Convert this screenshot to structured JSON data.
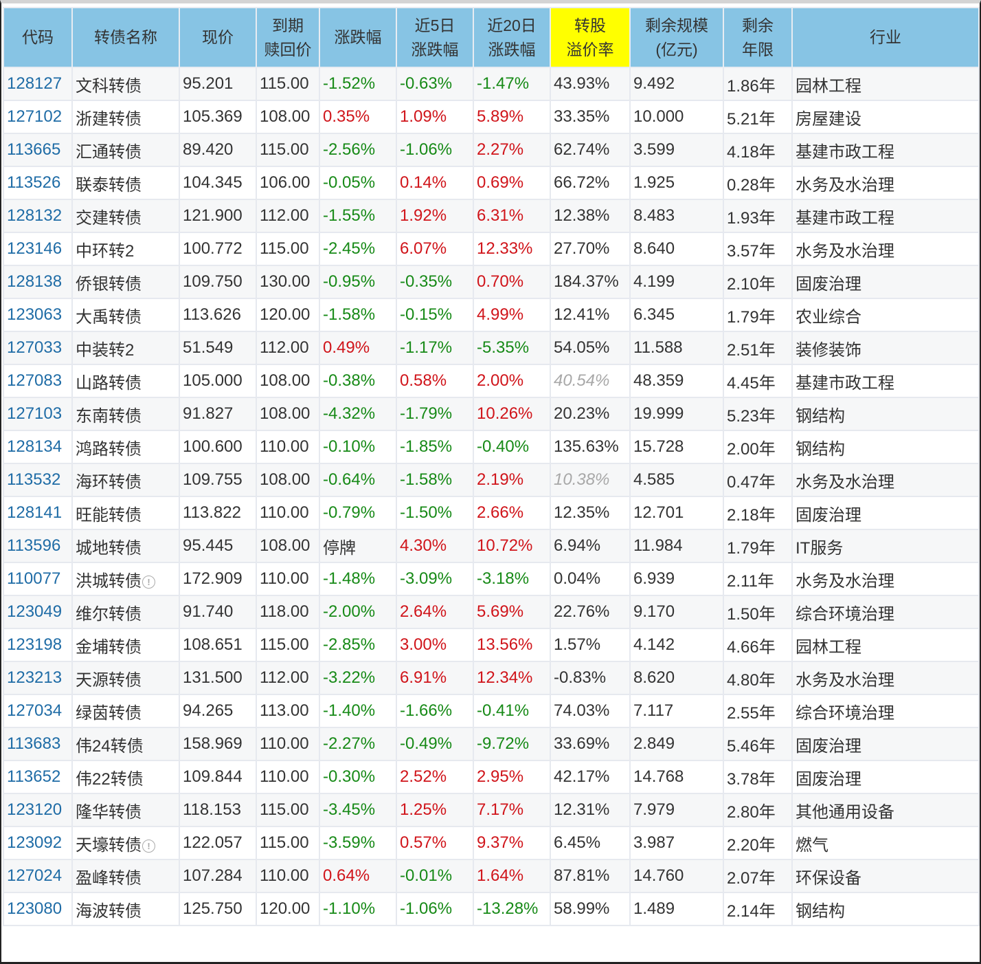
{
  "table": {
    "headers": [
      {
        "key": "code",
        "label": "代码"
      },
      {
        "key": "name",
        "label": "转债名称"
      },
      {
        "key": "price",
        "label": "现价"
      },
      {
        "key": "redeem",
        "label": "到期\n赎回价"
      },
      {
        "key": "chg",
        "label": "涨跌幅"
      },
      {
        "key": "chg5",
        "label": "近5日\n涨跌幅"
      },
      {
        "key": "chg20",
        "label": "近20日\n涨跌幅"
      },
      {
        "key": "premium",
        "label": "转股\n溢价率",
        "highlight": "#ffff00"
      },
      {
        "key": "size",
        "label": "剩余规模\n(亿元)"
      },
      {
        "key": "years",
        "label": "剩余\n年限"
      },
      {
        "key": "industry",
        "label": "行业"
      }
    ],
    "colors": {
      "header_bg": "#87c4e4",
      "highlight_bg": "#ffff00",
      "up": "#d0141a",
      "down": "#178a17",
      "link": "#1f6ca6",
      "muted": "#a8a8a8"
    },
    "rows": [
      {
        "code": "128127",
        "name": "文科转债",
        "price": "95.201",
        "redeem": "115.00",
        "chg": "-1.52%",
        "chg5": "-0.63%",
        "chg20": "-1.47%",
        "premium": "43.93%",
        "size": "9.492",
        "years": "1.86年",
        "industry": "园林工程"
      },
      {
        "code": "127102",
        "name": "浙建转债",
        "price": "105.369",
        "redeem": "108.00",
        "chg": "0.35%",
        "chg5": "1.09%",
        "chg20": "5.89%",
        "premium": "33.35%",
        "size": "10.000",
        "years": "5.21年",
        "industry": "房屋建设"
      },
      {
        "code": "113665",
        "name": "汇通转债",
        "price": "89.420",
        "redeem": "115.00",
        "chg": "-2.56%",
        "chg5": "-1.06%",
        "chg20": "2.27%",
        "premium": "62.74%",
        "size": "3.599",
        "years": "4.18年",
        "industry": "基建市政工程"
      },
      {
        "code": "113526",
        "name": "联泰转债",
        "price": "104.345",
        "redeem": "106.00",
        "chg": "-0.05%",
        "chg5": "0.14%",
        "chg20": "0.69%",
        "premium": "66.72%",
        "size": "1.925",
        "years": "0.28年",
        "industry": "水务及水治理"
      },
      {
        "code": "128132",
        "name": "交建转债",
        "price": "121.900",
        "redeem": "112.00",
        "chg": "-1.55%",
        "chg5": "1.92%",
        "chg20": "6.31%",
        "premium": "12.38%",
        "size": "8.483",
        "years": "1.93年",
        "industry": "基建市政工程"
      },
      {
        "code": "123146",
        "name": "中环转2",
        "price": "100.772",
        "redeem": "115.00",
        "chg": "-2.45%",
        "chg5": "6.07%",
        "chg20": "12.33%",
        "premium": "27.70%",
        "size": "8.640",
        "years": "3.57年",
        "industry": "水务及水治理"
      },
      {
        "code": "128138",
        "name": "侨银转债",
        "price": "109.750",
        "redeem": "130.00",
        "chg": "-0.95%",
        "chg5": "-0.35%",
        "chg20": "0.70%",
        "premium": "184.37%",
        "size": "4.199",
        "years": "2.10年",
        "industry": "固废治理"
      },
      {
        "code": "123063",
        "name": "大禹转债",
        "price": "113.626",
        "redeem": "120.00",
        "chg": "-1.58%",
        "chg5": "-0.15%",
        "chg20": "4.99%",
        "premium": "12.41%",
        "size": "6.345",
        "years": "1.79年",
        "industry": "农业综合"
      },
      {
        "code": "127033",
        "name": "中装转2",
        "price": "51.549",
        "redeem": "112.00",
        "chg": "0.49%",
        "chg5": "-1.17%",
        "chg20": "-5.35%",
        "premium": "54.05%",
        "size": "11.588",
        "years": "2.51年",
        "industry": "装修装饰"
      },
      {
        "code": "127083",
        "name": "山路转债",
        "price": "105.000",
        "redeem": "108.00",
        "chg": "-0.38%",
        "chg5": "0.58%",
        "chg20": "2.00%",
        "premium": "40.54%",
        "premium_muted": true,
        "size": "48.359",
        "years": "4.45年",
        "industry": "基建市政工程"
      },
      {
        "code": "127103",
        "name": "东南转债",
        "price": "91.827",
        "redeem": "108.00",
        "chg": "-4.32%",
        "chg5": "-1.79%",
        "chg20": "10.26%",
        "premium": "20.23%",
        "size": "19.999",
        "years": "5.23年",
        "industry": "钢结构"
      },
      {
        "code": "128134",
        "name": "鸿路转债",
        "price": "100.600",
        "redeem": "110.00",
        "chg": "-0.10%",
        "chg5": "-1.85%",
        "chg20": "-0.40%",
        "premium": "135.63%",
        "size": "15.728",
        "years": "2.00年",
        "industry": "钢结构"
      },
      {
        "code": "113532",
        "name": "海环转债",
        "price": "109.755",
        "redeem": "108.00",
        "chg": "-0.64%",
        "chg5": "-1.58%",
        "chg20": "2.19%",
        "premium": "10.38%",
        "premium_muted": true,
        "size": "4.585",
        "years": "0.47年",
        "industry": "水务及水治理"
      },
      {
        "code": "128141",
        "name": "旺能转债",
        "price": "113.822",
        "redeem": "110.00",
        "chg": "-0.79%",
        "chg5": "-1.50%",
        "chg20": "2.66%",
        "premium": "12.35%",
        "size": "12.701",
        "years": "2.18年",
        "industry": "固废治理"
      },
      {
        "code": "113596",
        "name": "城地转债",
        "price": "95.445",
        "redeem": "108.00",
        "chg": "停牌",
        "chg5": "4.30%",
        "chg20": "10.72%",
        "premium": "6.94%",
        "size": "11.984",
        "years": "1.79年",
        "industry": "IT服务"
      },
      {
        "code": "110077",
        "name": "洪城转债",
        "info_icon": true,
        "price": "172.909",
        "redeem": "110.00",
        "chg": "-1.48%",
        "chg5": "-3.09%",
        "chg20": "-3.18%",
        "premium": "0.04%",
        "size": "6.939",
        "years": "2.11年",
        "industry": "水务及水治理"
      },
      {
        "code": "123049",
        "name": "维尔转债",
        "price": "91.740",
        "redeem": "118.00",
        "chg": "-2.00%",
        "chg5": "2.64%",
        "chg20": "5.69%",
        "premium": "22.76%",
        "size": "9.170",
        "years": "1.50年",
        "industry": "综合环境治理"
      },
      {
        "code": "123198",
        "name": "金埔转债",
        "price": "108.651",
        "redeem": "115.00",
        "chg": "-2.85%",
        "chg5": "3.00%",
        "chg20": "13.56%",
        "premium": "1.57%",
        "size": "4.142",
        "years": "4.66年",
        "industry": "园林工程"
      },
      {
        "code": "123213",
        "name": "天源转债",
        "price": "131.500",
        "redeem": "112.00",
        "chg": "-3.22%",
        "chg5": "6.91%",
        "chg20": "12.34%",
        "premium": "-0.83%",
        "size": "8.620",
        "years": "4.80年",
        "industry": "水务及水治理"
      },
      {
        "code": "127034",
        "name": "绿茵转债",
        "price": "94.265",
        "redeem": "113.00",
        "chg": "-1.40%",
        "chg5": "-1.66%",
        "chg20": "-0.41%",
        "premium": "74.03%",
        "size": "7.117",
        "years": "2.55年",
        "industry": "综合环境治理"
      },
      {
        "code": "113683",
        "name": "伟24转债",
        "price": "158.969",
        "redeem": "110.00",
        "chg": "-2.27%",
        "chg5": "-0.49%",
        "chg20": "-9.72%",
        "premium": "33.69%",
        "size": "2.849",
        "years": "5.46年",
        "industry": "固废治理"
      },
      {
        "code": "113652",
        "name": "伟22转债",
        "price": "109.844",
        "redeem": "110.00",
        "chg": "-0.30%",
        "chg5": "2.52%",
        "chg20": "2.95%",
        "premium": "42.17%",
        "size": "14.768",
        "years": "3.78年",
        "industry": "固废治理"
      },
      {
        "code": "123120",
        "name": "隆华转债",
        "price": "118.153",
        "redeem": "115.00",
        "chg": "-3.45%",
        "chg5": "1.25%",
        "chg20": "7.17%",
        "premium": "12.31%",
        "size": "7.979",
        "years": "2.80年",
        "industry": "其他通用设备"
      },
      {
        "code": "123092",
        "name": "天壕转债",
        "info_icon": true,
        "price": "122.057",
        "redeem": "115.00",
        "chg": "-3.59%",
        "chg5": "0.57%",
        "chg20": "9.37%",
        "premium": "6.45%",
        "size": "3.987",
        "years": "2.20年",
        "industry": "燃气"
      },
      {
        "code": "127024",
        "name": "盈峰转债",
        "price": "107.284",
        "redeem": "110.00",
        "chg": "0.64%",
        "chg5": "-0.01%",
        "chg20": "1.64%",
        "premium": "87.81%",
        "size": "14.760",
        "years": "2.07年",
        "industry": "环保设备"
      },
      {
        "code": "123080",
        "name": "海波转债",
        "price": "125.750",
        "redeem": "120.00",
        "chg": "-1.10%",
        "chg5": "-1.06%",
        "chg20": "-13.28%",
        "premium": "58.99%",
        "size": "1.489",
        "years": "2.14年",
        "industry": "钢结构"
      }
    ]
  }
}
